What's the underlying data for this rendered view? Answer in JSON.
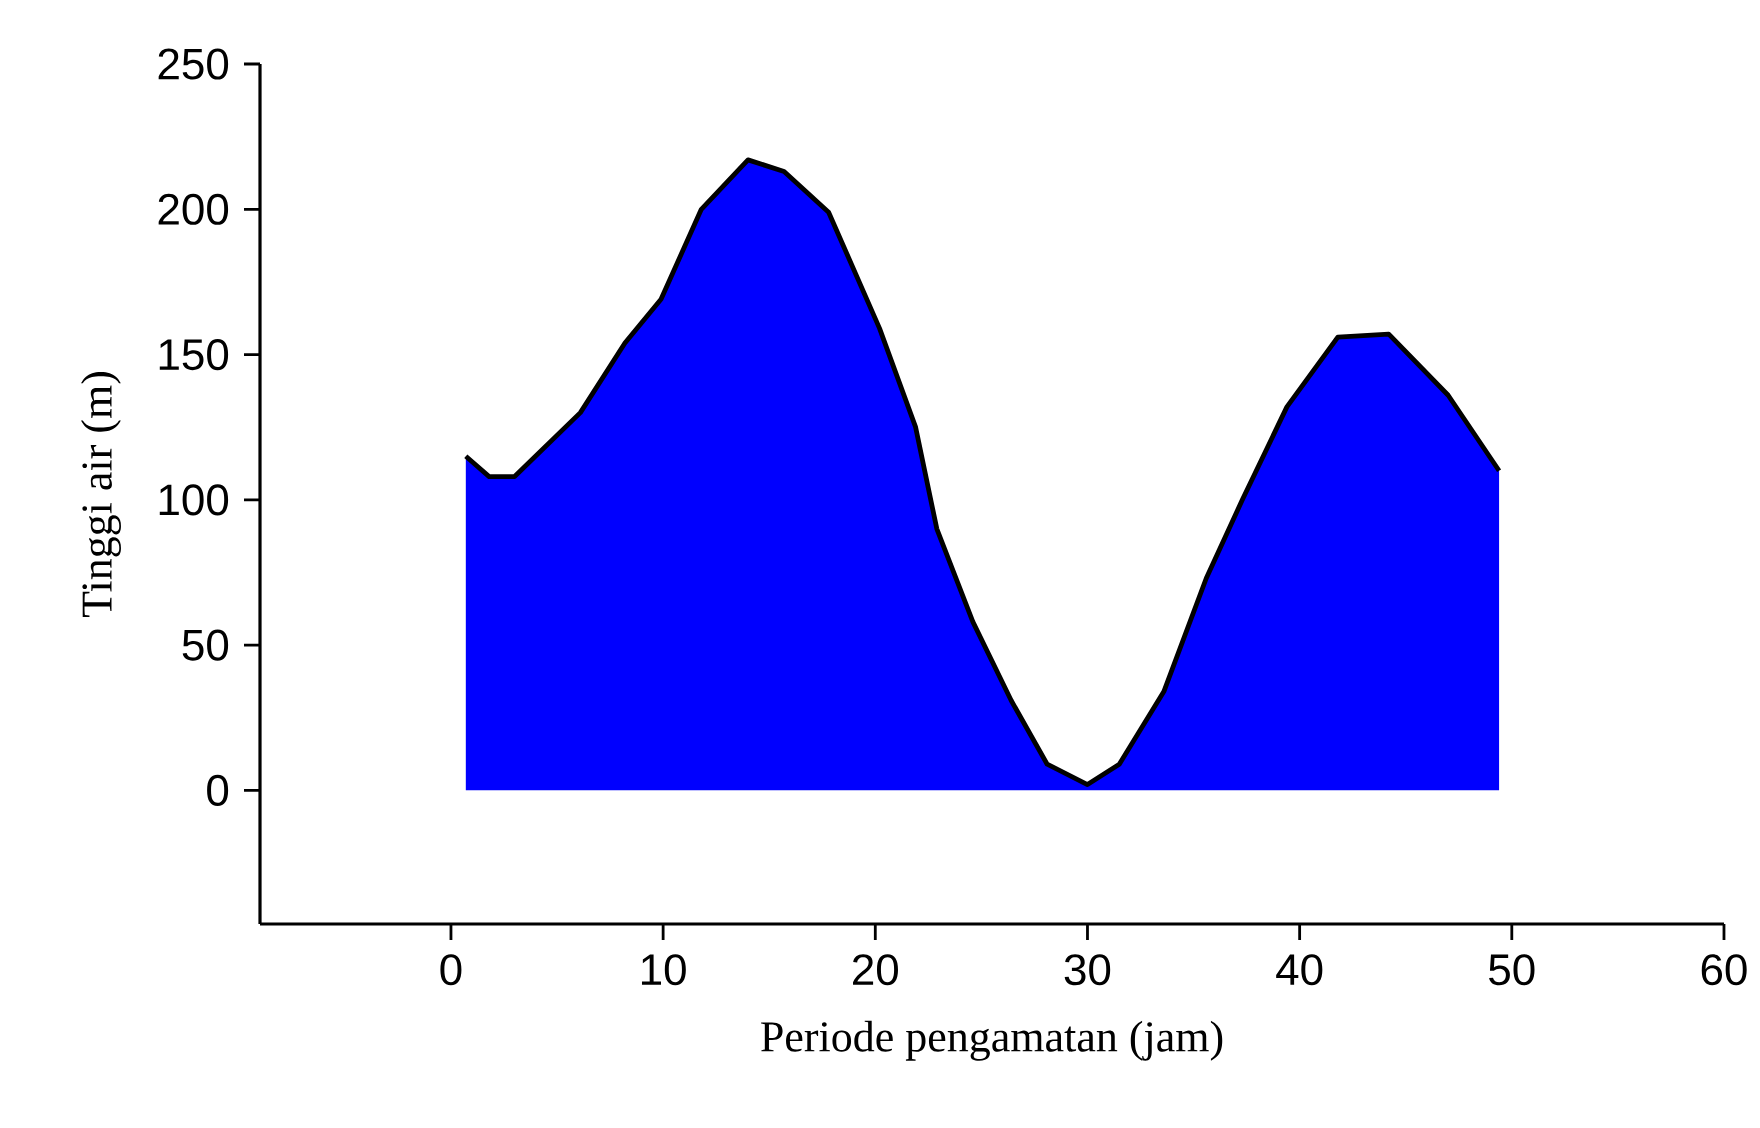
{
  "chart_data": {
    "type": "area",
    "xlabel": "Periode pengamatan (jam)",
    "ylabel": "Tinggi air (m)",
    "xlim": [
      -9,
      60
    ],
    "xticks": [
      0,
      10,
      20,
      30,
      40,
      50,
      60
    ],
    "ylim": [
      -46,
      250
    ],
    "yticks": [
      0,
      50,
      100,
      150,
      200,
      250
    ],
    "x": [
      0.7,
      1.8,
      3.0,
      6.1,
      8.2,
      9.9,
      11.8,
      14.0,
      15.7,
      17.8,
      20.2,
      21.9,
      22.9,
      24.6,
      26.4,
      28.1,
      30.0,
      31.5,
      33.6,
      35.6,
      37.3,
      39.4,
      41.8,
      44.2,
      47.0,
      49.4
    ],
    "series": [
      {
        "color": "#0000ff",
        "values": [
          115,
          108,
          108,
          130,
          154,
          169,
          200,
          217,
          213,
          199,
          159,
          125,
          90,
          58,
          31,
          9,
          2,
          9,
          34,
          73,
          100,
          132,
          156,
          157,
          136,
          110
        ]
      }
    ],
    "grid": false
  }
}
